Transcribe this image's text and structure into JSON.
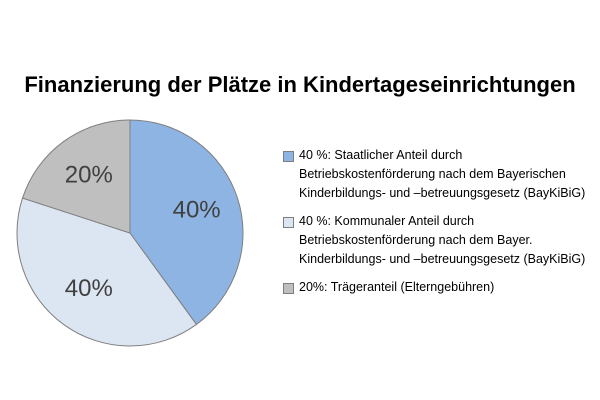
{
  "chart_data": {
    "type": "pie",
    "title": "Finanzierung der Plätze in Kindertageseinrichtungen",
    "categories": [
      "40 %: Staatlicher Anteil durch Betriebskostenförderung nach dem Bayerischen Kinderbildungs- und –betreuungsgesetz (BayKiBiG)",
      "40 %: Kommunaler Anteil durch Betriebskostenförderung nach dem Bayer. Kinderbildungs- und –betreuungsgesetz (BayKiBiG)",
      "20%: Trägeranteil (Elterngebühren)"
    ],
    "values": [
      40,
      40,
      20
    ],
    "value_labels": [
      "40%",
      "40%",
      "20%"
    ],
    "colors": [
      "#8eb4e3",
      "#dce6f2",
      "#bfbfbf"
    ],
    "legend": "right"
  }
}
